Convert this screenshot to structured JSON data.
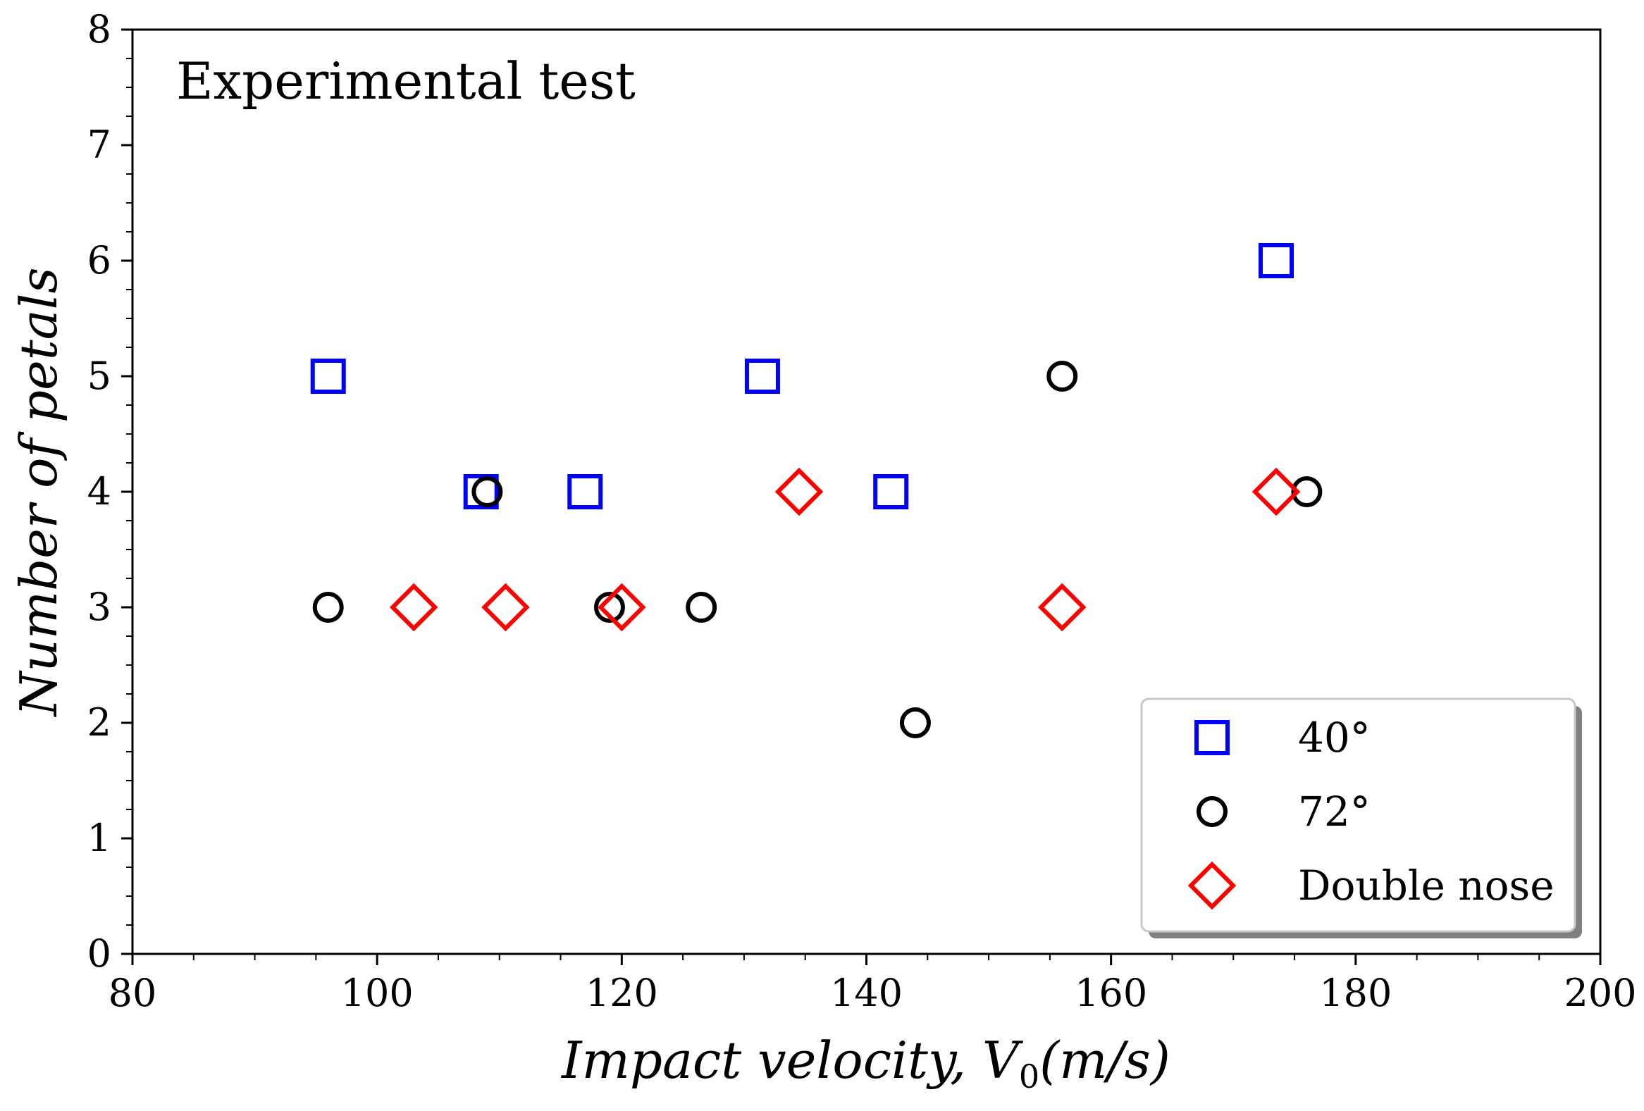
{
  "chart_data": {
    "type": "scatter",
    "title": "",
    "annotation": "Experimental test",
    "xlabel": "Impact velocity, V0(m/s)",
    "xlabel_parts": {
      "prefix": "Impact velocity, V",
      "subscript": "0",
      "suffix": "(m/s)"
    },
    "ylabel": "Number of petals",
    "xlim": [
      80,
      200
    ],
    "ylim": [
      0,
      8
    ],
    "xticks": [
      80,
      100,
      120,
      140,
      160,
      180,
      200
    ],
    "yticks": [
      0,
      1,
      2,
      3,
      4,
      5,
      6,
      7,
      8
    ],
    "grid": false,
    "legend_position": "bottom-right",
    "series": [
      {
        "name": "40°",
        "marker": "square",
        "color": "#0000ff",
        "points": [
          {
            "x": 96,
            "y": 5
          },
          {
            "x": 108.5,
            "y": 4
          },
          {
            "x": 117,
            "y": 4
          },
          {
            "x": 131.5,
            "y": 5
          },
          {
            "x": 142,
            "y": 4
          },
          {
            "x": 173.5,
            "y": 6
          }
        ]
      },
      {
        "name": "72°",
        "marker": "circle",
        "color": "#000000",
        "points": [
          {
            "x": 96,
            "y": 3
          },
          {
            "x": 109,
            "y": 4
          },
          {
            "x": 119,
            "y": 3
          },
          {
            "x": 126.5,
            "y": 3
          },
          {
            "x": 144,
            "y": 2
          },
          {
            "x": 156,
            "y": 5
          },
          {
            "x": 176,
            "y": 4
          }
        ]
      },
      {
        "name": "Double nose",
        "marker": "diamond",
        "color": "#ff0000",
        "points": [
          {
            "x": 103,
            "y": 3
          },
          {
            "x": 110.5,
            "y": 3
          },
          {
            "x": 120,
            "y": 3
          },
          {
            "x": 134.5,
            "y": 4
          },
          {
            "x": 156,
            "y": 3
          },
          {
            "x": 173.5,
            "y": 4
          }
        ]
      }
    ]
  }
}
